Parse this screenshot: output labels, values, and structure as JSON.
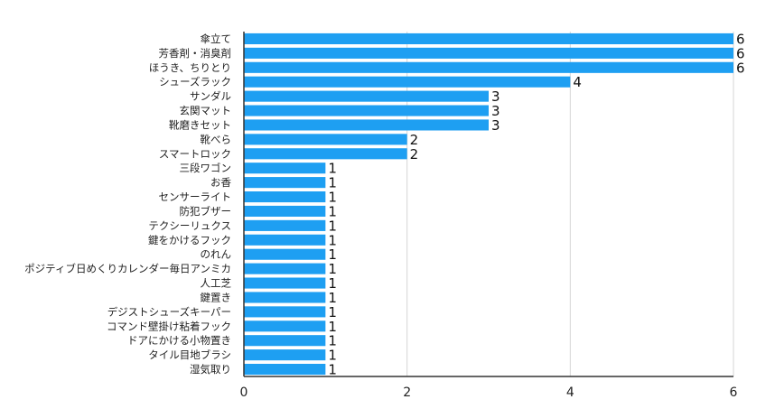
{
  "chart_data": {
    "type": "bar",
    "orientation": "horizontal",
    "title": "",
    "xlabel": "",
    "ylabel": "",
    "categories": [
      "傘立て",
      "芳香剤・消臭剤",
      "ほうき、ちりとり",
      "シューズラック",
      "サンダル",
      "玄関マット",
      "靴磨きセット",
      "靴べら",
      "スマートロック",
      "三段ワゴン",
      "お香",
      "センサーライト",
      "防犯ブザー",
      "テクシーリュクス",
      "鍵をかけるフック",
      "のれん",
      "ポジティブ日めくりカレンダー毎日アンミカ",
      "人工芝",
      "鍵置き",
      "デジストシューズキーパー",
      "コマンド壁掛け粘着フック",
      "ドアにかける小物置き",
      "タイル目地ブラシ",
      "湿気取り"
    ],
    "values": [
      6,
      6,
      6,
      4,
      3,
      3,
      3,
      2,
      2,
      1,
      1,
      1,
      1,
      1,
      1,
      1,
      1,
      1,
      1,
      1,
      1,
      1,
      1,
      1
    ],
    "xlim": [
      0,
      6
    ],
    "xticks": [
      0,
      2,
      4,
      6
    ],
    "grid": true,
    "legend": "none",
    "bar_color": "#1e9ff2"
  }
}
